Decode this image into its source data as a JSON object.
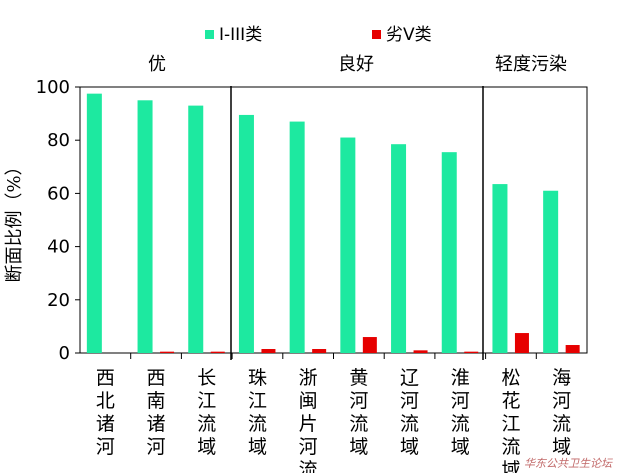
{
  "chart_data": {
    "type": "bar",
    "ylabel": "断面比例（%）",
    "ylim": [
      0,
      100
    ],
    "yticks": [
      0,
      20,
      40,
      60,
      80,
      100
    ],
    "grid": false,
    "legend_position": "top",
    "categories": [
      "西北诸河",
      "西南诸河",
      "长江流域",
      "珠江流域",
      "浙闽片河流",
      "黄河流域",
      "辽河流域",
      "淮河流域",
      "松花江流域",
      "海河流域"
    ],
    "series": [
      {
        "name": "I-III类",
        "color": "#1de9a0",
        "values": [
          97.5,
          95,
          93,
          89.5,
          87,
          81,
          78.5,
          75.5,
          63.5,
          61
        ]
      },
      {
        "name": "劣V类",
        "color": "#e60000",
        "values": [
          0,
          0.5,
          0.5,
          1.5,
          1.5,
          6,
          1,
          0.5,
          7.5,
          3
        ]
      }
    ],
    "groups": [
      {
        "label": "优",
        "start": 0,
        "end": 2
      },
      {
        "label": "良好",
        "start": 3,
        "end": 7
      },
      {
        "label": "轻度污染",
        "start": 8,
        "end": 9
      }
    ]
  },
  "watermark": "华东公共卫生论坛"
}
